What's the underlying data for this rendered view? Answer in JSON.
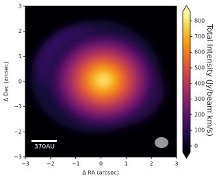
{
  "chart_data": {
    "type": "heatmap",
    "xlabel": "Δ RA (arcsec)",
    "ylabel": "Δ Dec (arcsec)",
    "xlim": [
      -3,
      3
    ],
    "ylim": [
      -3,
      3
    ],
    "xticks": [
      {
        "value": -3,
        "label": "−3"
      },
      {
        "value": -2,
        "label": "−2"
      },
      {
        "value": -1,
        "label": "−1"
      },
      0,
      1,
      2,
      3
    ],
    "yticks": [
      {
        "value": -3,
        "label": "−3"
      },
      {
        "value": -2,
        "label": "−2"
      },
      {
        "value": -1,
        "label": "−1"
      },
      0,
      1,
      2,
      3
    ],
    "colormap": "inferno",
    "colorbar": {
      "label": "Total Intensity (Jy/beam km/s)",
      "lim": [
        -40,
        860
      ],
      "ticks": [
        0,
        100,
        200,
        300,
        400,
        500,
        600,
        700,
        800
      ]
    },
    "scale_bar_label": "370AU"
  }
}
